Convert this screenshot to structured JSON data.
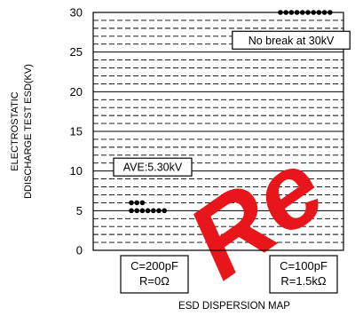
{
  "chart_data": {
    "type": "scatter",
    "title": "",
    "xlabel": "ESD DISPERSION MAP",
    "ylabel_lines": [
      "ELECTROSTATIC",
      "DDISCHARGE TEST ESD(KV)"
    ],
    "ylim": [
      0,
      30
    ],
    "yticks": [
      0,
      5,
      10,
      15,
      20,
      25,
      30
    ],
    "minor_grid_step": 1,
    "grid": true,
    "categories": [
      {
        "lines": [
          "C=200pF",
          "R=0Ω"
        ]
      },
      {
        "lines": [
          "C=100pF",
          "R=1.5kΩ"
        ]
      }
    ],
    "series": [
      {
        "points": [
          {
            "x": 0,
            "y": 6,
            "n": 3
          },
          {
            "x": 0,
            "y": 5,
            "n": 7
          },
          {
            "x": 1,
            "y": 30,
            "n": 10
          }
        ]
      }
    ],
    "annotations": [
      {
        "text": "No break at 30kV",
        "x": 1,
        "y": 26.5
      },
      {
        "text": "AVE:5.30kV",
        "x": 0,
        "y": 10.5
      }
    ],
    "watermark": "Re"
  }
}
